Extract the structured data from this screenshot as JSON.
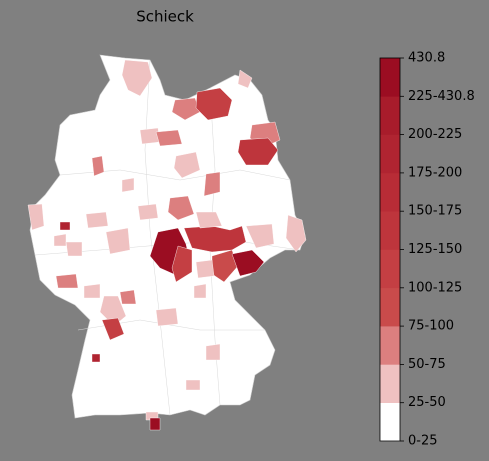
{
  "title": "Schieck",
  "legend": {
    "labels": [
      "0-25",
      "25-50",
      "50-75",
      "75-100",
      "100-125",
      "125-150",
      "150-175",
      "175-200",
      "200-225",
      "225-430.8",
      "430.8"
    ],
    "colors": [
      "#ffffff",
      "#efc1c1",
      "#dc7f7f",
      "#c94b4b",
      "#c43f43",
      "#be353c",
      "#b82c36",
      "#b02431",
      "#a81c2b",
      "#9b0d22"
    ]
  }
}
